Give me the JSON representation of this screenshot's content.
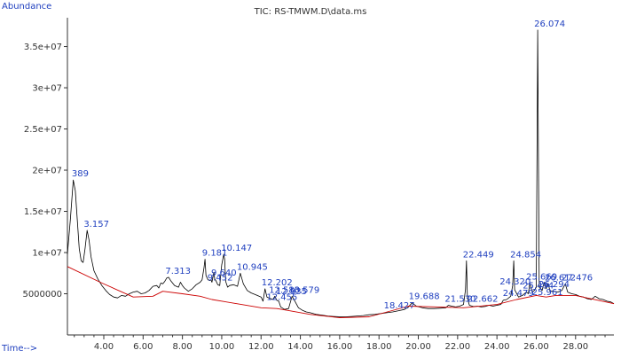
{
  "labels": {
    "title": "TIC: RS-TMWM.D\\data.ms",
    "y_corner": "Abundance",
    "x_corner": "Time-->"
  },
  "colors": {
    "trace": "#000000",
    "baseline": "#cc0000",
    "labels": "#1f3fbf",
    "axes": "#333333"
  },
  "chart_data": {
    "type": "line",
    "title": "TIC: RS-TMWM.D\\data.ms",
    "xlabel": "Time-->",
    "ylabel": "Abundance",
    "xlim": [
      2.15,
      29.95
    ],
    "ylim": [
      0,
      38500000
    ],
    "x_ticks": [
      4.0,
      6.0,
      8.0,
      10.0,
      12.0,
      14.0,
      16.0,
      18.0,
      20.0,
      22.0,
      24.0,
      26.0,
      28.0
    ],
    "x_tick_labels": [
      "4.00",
      "6.00",
      "8.00",
      "10.00",
      "12.00",
      "14.00",
      "16.00",
      "18.00",
      "20.00",
      "22.00",
      "24.00",
      "26.00",
      "28.00"
    ],
    "y_ticks": [
      5000000,
      10000000,
      15000000,
      20000000,
      25000000,
      30000000,
      35000000
    ],
    "y_tick_labels": [
      "5000000",
      "1e+07",
      "1.5e+07",
      "2e+07",
      "2.5e+07",
      "3e+07",
      "3.5e+07"
    ],
    "series": [
      {
        "role": "tic",
        "x": [
          2.15,
          2.3,
          2.45,
          2.55,
          2.65,
          2.75,
          2.85,
          2.95,
          3.05,
          3.15,
          3.25,
          3.35,
          3.5,
          3.7,
          3.9,
          4.1,
          4.3,
          4.5,
          4.7,
          4.9,
          5.1,
          5.3,
          5.5,
          5.7,
          5.9,
          6.1,
          6.3,
          6.5,
          6.7,
          6.8,
          6.9,
          7.0,
          7.1,
          7.2,
          7.3,
          7.4,
          7.6,
          7.8,
          7.9,
          8.0,
          8.1,
          8.3,
          8.5,
          8.7,
          8.9,
          9.0,
          9.1,
          9.15,
          9.2,
          9.3,
          9.4,
          9.45,
          9.5,
          9.6,
          9.64,
          9.7,
          9.8,
          9.9,
          10.0,
          10.1,
          10.147,
          10.2,
          10.3,
          10.4,
          10.6,
          10.8,
          10.945,
          11.1,
          11.3,
          11.5,
          11.7,
          11.9,
          12.0,
          12.1,
          12.2,
          12.3,
          12.4,
          12.5,
          12.6,
          12.7,
          12.8,
          12.9,
          13.0,
          13.2,
          13.4,
          13.579,
          13.7,
          13.9,
          14.1,
          14.3,
          14.5,
          14.8,
          15.1,
          15.4,
          15.7,
          16.0,
          16.3,
          16.6,
          16.9,
          17.2,
          17.5,
          17.8,
          18.1,
          18.4,
          18.7,
          19.0,
          19.3,
          19.5,
          19.688,
          19.9,
          20.2,
          20.5,
          20.8,
          21.1,
          21.4,
          21.53,
          21.7,
          21.9,
          22.1,
          22.3,
          22.4,
          22.449,
          22.5,
          22.6,
          22.8,
          23.0,
          23.2,
          23.4,
          23.6,
          23.8,
          24.0,
          24.2,
          24.32,
          24.5,
          24.7,
          24.8,
          24.854,
          24.9,
          25.1,
          25.3,
          25.494,
          25.6,
          25.669,
          25.8,
          25.9,
          26.0,
          26.074,
          26.15,
          26.3,
          26.4,
          26.5,
          26.612,
          26.7,
          26.9,
          27.1,
          27.3,
          27.476,
          27.6,
          27.8,
          28.0,
          28.2,
          28.4,
          28.6,
          28.8,
          29.0,
          29.2,
          29.4,
          29.6,
          29.8,
          29.95
        ],
        "y": [
          9800000,
          14000000,
          18800000,
          17500000,
          14000000,
          10500000,
          9000000,
          8800000,
          10500000,
          12700000,
          11500000,
          9500000,
          7800000,
          6800000,
          6000000,
          5400000,
          4900000,
          4600000,
          4500000,
          4800000,
          4700000,
          5000000,
          5200000,
          5300000,
          5000000,
          5100000,
          5400000,
          5900000,
          6000000,
          5700000,
          6300000,
          6200000,
          6500000,
          6900000,
          7000000,
          6600000,
          6000000,
          5800000,
          6400000,
          6000000,
          5700000,
          5300000,
          5600000,
          6100000,
          6400000,
          6700000,
          8200000,
          9200000,
          7200000,
          6700000,
          6600000,
          6700000,
          6400000,
          7600000,
          6800000,
          6600000,
          6100000,
          6000000,
          8500000,
          9800000,
          9200000,
          6500000,
          5800000,
          6000000,
          6100000,
          5900000,
          7500000,
          6200000,
          5400000,
          5100000,
          4900000,
          4700000,
          4600000,
          4100000,
          5600000,
          4600000,
          4500000,
          4400000,
          4300000,
          4700000,
          4200000,
          4100000,
          3400000,
          3100000,
          3200000,
          4700000,
          4200000,
          3300000,
          3000000,
          2800000,
          2700000,
          2500000,
          2400000,
          2300000,
          2250000,
          2200000,
          2200000,
          2250000,
          2300000,
          2350000,
          2450000,
          2500000,
          2600000,
          2700000,
          2800000,
          2950000,
          3100000,
          3400000,
          3900000,
          3500000,
          3300000,
          3200000,
          3200000,
          3250000,
          3300000,
          3600000,
          3500000,
          3400000,
          3500000,
          3700000,
          5500000,
          9000000,
          4500000,
          3600000,
          3450000,
          3500000,
          3400000,
          3450000,
          3600000,
          3500000,
          3600000,
          3700000,
          4200000,
          4300000,
          4700000,
          6000000,
          9000000,
          5500000,
          4600000,
          4800000,
          5200000,
          5000000,
          6300000,
          5200000,
          5400000,
          5800000,
          37000000,
          5800000,
          5400000,
          6400000,
          5600000,
          6200000,
          5300000,
          5300000,
          5200000,
          5400000,
          6200000,
          5200000,
          5000000,
          4900000,
          4700000,
          4600000,
          4400000,
          4300000,
          4700000,
          4400000,
          4300000,
          4100000,
          4000000,
          3800000
        ]
      },
      {
        "role": "baseline",
        "x": [
          2.15,
          3.9,
          5.5,
          6.5,
          7.0,
          8.0,
          8.9,
          9.5,
          11.0,
          12.0,
          12.8,
          13.3,
          14.5,
          16.0,
          17.5,
          19.5,
          21.0,
          22.3,
          24.0,
          25.0,
          26.0,
          26.5,
          27.0,
          28.0,
          29.95
        ],
        "y": [
          8300000,
          6300000,
          4600000,
          4700000,
          5300000,
          5000000,
          4700000,
          4300000,
          3700000,
          3300000,
          3200000,
          3000000,
          2500000,
          2100000,
          2200000,
          3500000,
          3400000,
          3300000,
          3700000,
          4300000,
          4800000,
          4600000,
          4800000,
          4800000,
          3800000
        ]
      }
    ],
    "peak_labels": [
      {
        "text": "389",
        "x": 2.55,
        "y": 18800000
      },
      {
        "text": "3.157",
        "x": 3.157,
        "y": 12700000
      },
      {
        "text": "7.313",
        "x": 7.313,
        "y": 7000000
      },
      {
        "text": "9.181",
        "x": 9.181,
        "y": 9200000
      },
      {
        "text": "9.640",
        "x": 9.64,
        "y": 6800000
      },
      {
        "text": "9.452",
        "x": 9.452,
        "y": 6200000
      },
      {
        "text": "10.147",
        "x": 10.147,
        "y": 9800000
      },
      {
        "text": "10.945",
        "x": 10.945,
        "y": 7500000
      },
      {
        "text": "12.202",
        "x": 12.202,
        "y": 5600000
      },
      {
        "text": "12.580",
        "x": 12.58,
        "y": 4700000
      },
      {
        "text": "12.935",
        "x": 12.935,
        "y": 4500000
      },
      {
        "text": "13.579",
        "x": 13.579,
        "y": 4700000
      },
      {
        "text": "12.455",
        "x": 12.455,
        "y": 3800000
      },
      {
        "text": "18.427",
        "x": 18.427,
        "y": 2800000
      },
      {
        "text": "19.688",
        "x": 19.688,
        "y": 3900000
      },
      {
        "text": "21.530",
        "x": 21.53,
        "y": 3600000
      },
      {
        "text": "22.449",
        "x": 22.449,
        "y": 9000000
      },
      {
        "text": "22.662",
        "x": 22.662,
        "y": 3600000
      },
      {
        "text": "24.854",
        "x": 24.854,
        "y": 9000000
      },
      {
        "text": "24.320",
        "x": 24.32,
        "y": 5700000
      },
      {
        "text": "24.479",
        "x": 24.479,
        "y": 4300000
      },
      {
        "text": "25.669",
        "x": 25.669,
        "y": 6300000
      },
      {
        "text": "25.494",
        "x": 25.494,
        "y": 5200000
      },
      {
        "text": "25.961",
        "x": 25.961,
        "y": 4400000
      },
      {
        "text": "26.074",
        "x": 26.074,
        "y": 37000000
      },
      {
        "text": "26.612",
        "x": 26.612,
        "y": 6200000
      },
      {
        "text": "26.294",
        "x": 26.294,
        "y": 5400000
      },
      {
        "text": "27.476",
        "x": 27.476,
        "y": 6200000
      }
    ]
  }
}
